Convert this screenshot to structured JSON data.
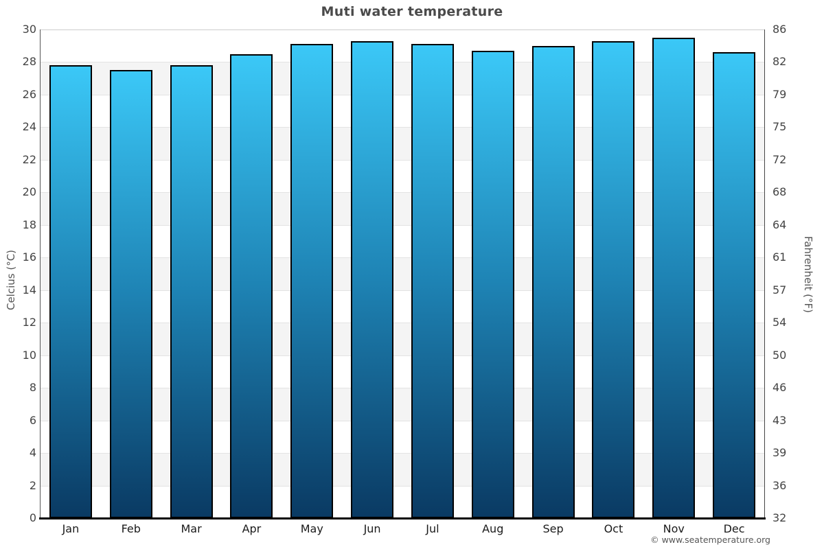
{
  "chart_data": {
    "type": "bar",
    "title": "Muti water temperature",
    "categories": [
      "Jan",
      "Feb",
      "Mar",
      "Apr",
      "May",
      "Jun",
      "Jul",
      "Aug",
      "Sep",
      "Oct",
      "Nov",
      "Dec"
    ],
    "values": [
      27.8,
      27.5,
      27.8,
      28.5,
      29.1,
      29.3,
      29.1,
      28.7,
      29.0,
      29.3,
      29.5,
      28.6
    ],
    "ylabel_left": "Celcius (°C)",
    "ylabel_right": "Fahrenheit (°F)",
    "ylim": [
      0,
      30
    ],
    "ytick_step": 2,
    "yticks_celsius": [
      0,
      2,
      4,
      6,
      8,
      10,
      12,
      14,
      16,
      18,
      20,
      22,
      24,
      26,
      28,
      30
    ],
    "yticks_fahrenheit": [
      32,
      36,
      39,
      43,
      46,
      50,
      54,
      57,
      61,
      64,
      68,
      72,
      75,
      79,
      82,
      86
    ],
    "grid": "horizontal-bands-alternating",
    "legend": "none",
    "colors": {
      "bar_gradient_top": "#3bc8f7",
      "bar_gradient_mid": "#1e83b4",
      "bar_gradient_bottom": "#0a3a63",
      "bar_border": "#000000",
      "band_light": "#ffffff",
      "band_dark": "#f4f4f4",
      "gridline": "#e3e3e3",
      "axis_color": "#000000",
      "title_color": "#4a4a4a",
      "tick_color": "#444444"
    }
  },
  "attribution": "© www.seatemperature.org"
}
